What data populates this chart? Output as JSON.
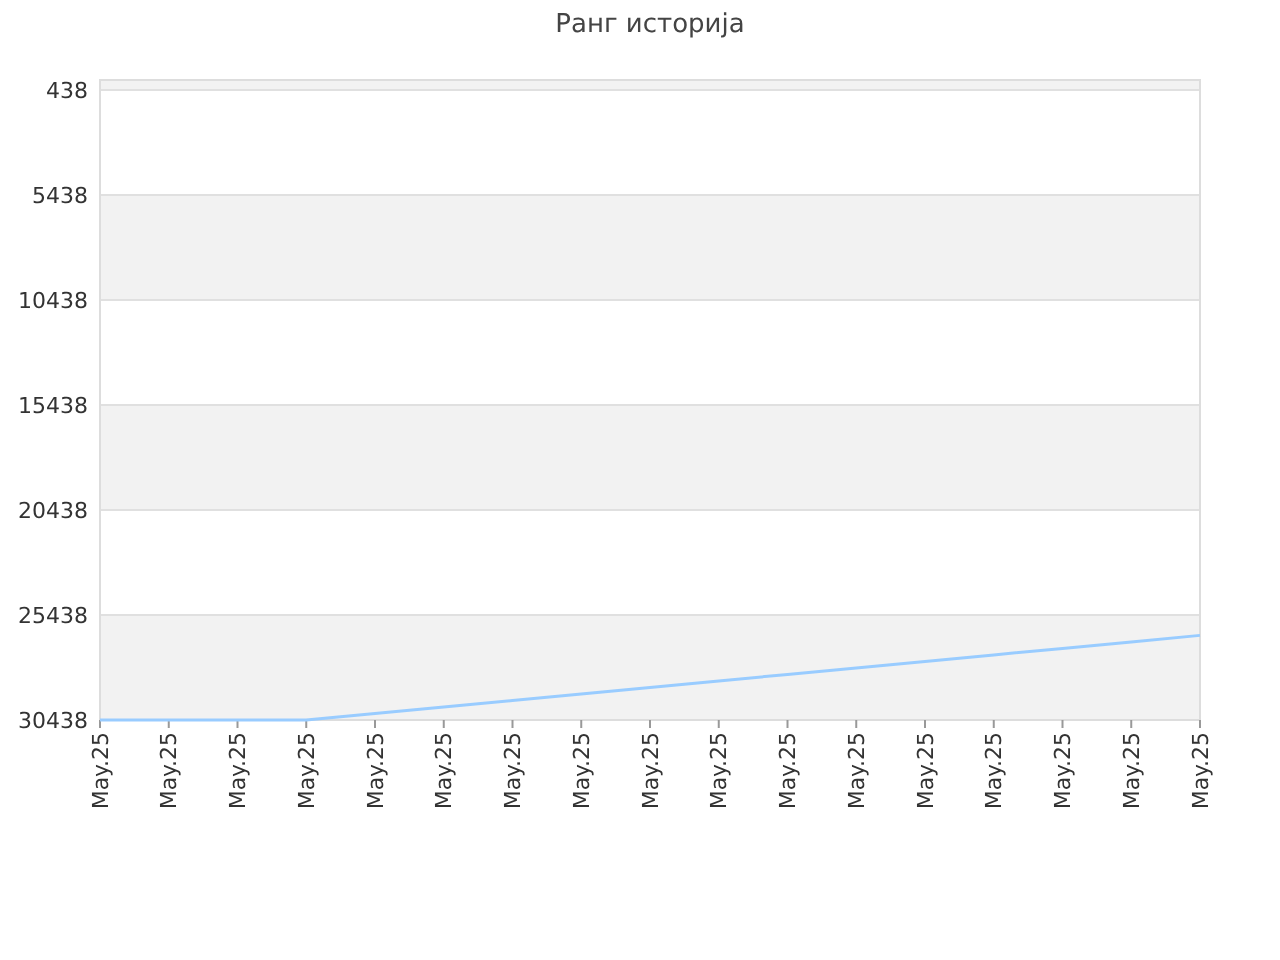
{
  "chart_data": {
    "type": "line",
    "title": "Ранг историја",
    "categories": [
      "May.25",
      "May.25",
      "May.25",
      "May.25",
      "May.25",
      "May.25",
      "May.25",
      "May.25",
      "May.25",
      "May.25",
      "May.25",
      "May.25",
      "May.25",
      "May.25",
      "May.25",
      "May.25",
      "May.25"
    ],
    "series": [
      {
        "color": "#99ccff",
        "values": [
          30438,
          30438,
          30438,
          30438,
          30128,
          29818,
          29508,
          29198,
          28888,
          28578,
          28268,
          27958,
          27648,
          27338,
          27028,
          26718,
          26408
        ]
      }
    ],
    "ylim": [
      30438,
      -42
    ],
    "yticks": [
      438,
      5438,
      10438,
      15438,
      20438,
      25438,
      30438
    ],
    "grid": "y",
    "marker": "none",
    "line_style": "solid"
  }
}
